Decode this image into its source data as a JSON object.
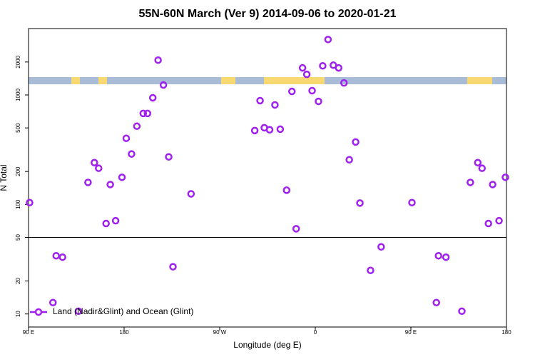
{
  "chart_data": {
    "type": "scatter",
    "title": "55N-60N March (Ver 9)   2014-09-06 to 2020-01-21",
    "x_label": "Longitude (deg E)",
    "y_label": "N Total",
    "log_y": true,
    "xlim": [
      90,
      540
    ],
    "xticks": [
      {
        "value": 90,
        "label": "90 E"
      },
      180,
      {
        "value": 270,
        "label": "90 W"
      },
      {
        "value": 360,
        "label": "0"
      },
      {
        "value": 450,
        "label": "90 E"
      },
      {
        "value": 540,
        "label": "180"
      }
    ],
    "ylim": [
      7.6,
      4040
    ],
    "yticks": [
      10,
      20,
      50,
      100,
      200,
      500,
      1000,
      2000
    ],
    "reference_line": 50,
    "legend": "bottom-left",
    "series": [
      {
        "name": "Land (Nadir&Glint) and Ocean (Glint)",
        "color": "#a020f0",
        "x": [
          91,
          113,
          116,
          122,
          137,
          146,
          152,
          156,
          163,
          167,
          172,
          178,
          182,
          187,
          192,
          198,
          202,
          207,
          212,
          217,
          222,
          226,
          243,
          303,
          308,
          312,
          317,
          322,
          327,
          333,
          338,
          342,
          348,
          352,
          357,
          363,
          367,
          372,
          377,
          382,
          387,
          392,
          398,
          402,
          412,
          422,
          451,
          474,
          476,
          483,
          498,
          506,
          513,
          517,
          523,
          527,
          533,
          539
        ],
        "values": [
          104,
          12.7,
          34,
          33,
          10.6,
          159,
          241,
          214,
          67,
          152,
          71,
          177,
          402,
          289,
          518,
          678,
          678,
          942,
          2080,
          1233,
          272,
          27,
          125,
          473,
          887,
          502,
          481,
          811,
          487,
          135,
          1077,
          60,
          1766,
          1542,
          1094,
          874,
          1845,
          3210,
          1870,
          1766,
          1288,
          256,
          372,
          103,
          25,
          41,
          104,
          12.7,
          34,
          33,
          10.6,
          159,
          241,
          214,
          67,
          152,
          71,
          177
        ]
      }
    ]
  }
}
